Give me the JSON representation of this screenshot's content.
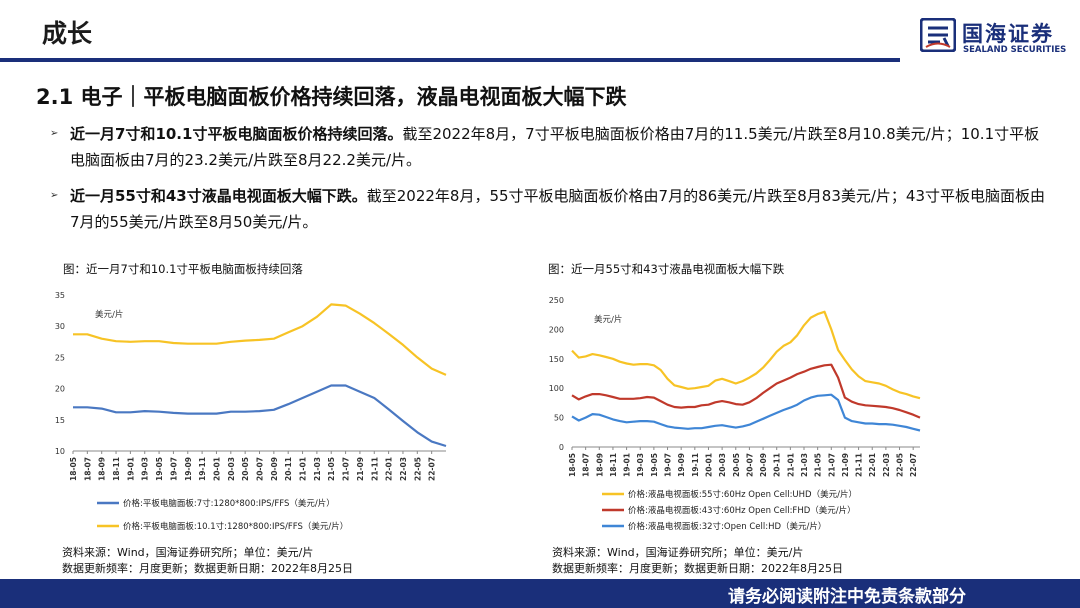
{
  "header": {
    "title": "成长",
    "logo_cn": "国海证券",
    "logo_en": "SEALAND SECURITIES",
    "brand_color": "#1a2f7a"
  },
  "section": {
    "heading": "2.1 电子｜平板电脑面板价格持续回落，液晶电视面板大幅下跌"
  },
  "bullets": [
    {
      "bold": "近一月7寸和10.1寸平板电脑面板价格持续回落。",
      "text": "截至2022年8月，7寸平板电脑面板价格由7月的11.5美元/片跌至8月10.8美元/片；10.1寸平板电脑面板由7月的23.2美元/片跌至8月22.2美元/片。"
    },
    {
      "bold": "近一月55寸和43寸液晶电视面板大幅下跌。",
      "text": "截至2022年8月，55寸平板电脑面板价格由7月的86美元/片跌至8月83美元/片；43寸平板电脑面板由7月的55美元/片跌至8月50美元/片。"
    }
  ],
  "left_panel": {
    "caption": "图：近一月7寸和10.1寸平板电脑面板持续回落",
    "source": "资料来源：Wind，国海证券研究所；单位：美元/片",
    "update": "数据更新频率：月度更新；数据更新日期：2022年8月25日"
  },
  "right_panel": {
    "caption": "图：近一月55寸和43寸液晶电视面板大幅下跌",
    "source": "资料来源：Wind，国海证券研究所；单位：美元/片",
    "update": "数据更新频率：月度更新；数据更新日期：2022年8月25日"
  },
  "footer": {
    "disclaimer": "请务必阅读附注中免责条款部分"
  },
  "chart_data": [
    {
      "type": "line",
      "unit_label": "美元/片",
      "ylim": [
        10,
        35
      ],
      "yticks": [
        10,
        15,
        20,
        25,
        30,
        35
      ],
      "grid": false,
      "legend_position": "bottom",
      "x_tick_labels": [
        "18-05",
        "18-07",
        "18-09",
        "18-11",
        "19-01",
        "19-03",
        "19-05",
        "19-07",
        "19-09",
        "19-11",
        "20-01",
        "20-03",
        "20-05",
        "20-07",
        "20-09",
        "20-11",
        "21-01",
        "21-03",
        "21-05",
        "21-07",
        "21-09",
        "21-11",
        "22-01",
        "22-03",
        "22-05",
        "22-07"
      ],
      "x": [
        "18-05",
        "18-07",
        "18-09",
        "18-11",
        "19-01",
        "19-03",
        "19-05",
        "19-07",
        "19-09",
        "19-11",
        "20-01",
        "20-03",
        "20-05",
        "20-07",
        "20-09",
        "20-11",
        "21-01",
        "21-03",
        "21-05",
        "21-07",
        "21-09",
        "21-11",
        "22-01",
        "22-03",
        "22-05",
        "22-07",
        "22-08"
      ],
      "series": [
        {
          "name": "价格:平板电脑面板:7寸:1280*800:IPS/FFS（美元/片）",
          "color": "#4a78c2",
          "values": [
            17.0,
            17.0,
            16.8,
            16.2,
            16.2,
            16.4,
            16.3,
            16.1,
            16.0,
            16.0,
            16.0,
            16.3,
            16.3,
            16.4,
            16.6,
            17.5,
            18.5,
            19.5,
            20.5,
            20.5,
            19.5,
            18.5,
            16.7,
            14.8,
            13.0,
            11.5,
            10.8
          ]
        },
        {
          "name": "价格:平板电脑面板:10.1寸:1280*800:IPS/FFS（美元/片）",
          "color": "#f7c325",
          "values": [
            28.7,
            28.7,
            28.0,
            27.6,
            27.5,
            27.6,
            27.6,
            27.3,
            27.2,
            27.2,
            27.2,
            27.5,
            27.7,
            27.8,
            28.0,
            29.0,
            30.0,
            31.5,
            33.5,
            33.3,
            32.0,
            30.5,
            28.8,
            27.0,
            25.0,
            23.2,
            22.2
          ]
        }
      ]
    },
    {
      "type": "line",
      "unit_label": "美元/片",
      "ylim": [
        0,
        250
      ],
      "yticks": [
        0,
        50,
        100,
        150,
        200,
        250
      ],
      "grid": false,
      "legend_position": "bottom",
      "x_tick_labels": [
        "18-05",
        "18-07",
        "18-09",
        "18-11",
        "19-01",
        "19-03",
        "19-05",
        "19-07",
        "19-09",
        "19-11",
        "20-01",
        "20-03",
        "20-05",
        "20-07",
        "20-09",
        "20-11",
        "21-01",
        "21-03",
        "21-05",
        "21-07",
        "21-09",
        "21-11",
        "22-01",
        "22-03",
        "22-05",
        "22-07"
      ],
      "x": [
        "18-05",
        "18-06",
        "18-07",
        "18-08",
        "18-09",
        "18-10",
        "18-11",
        "18-12",
        "19-01",
        "19-02",
        "19-03",
        "19-04",
        "19-05",
        "19-06",
        "19-07",
        "19-08",
        "19-09",
        "19-10",
        "19-11",
        "19-12",
        "20-01",
        "20-02",
        "20-03",
        "20-04",
        "20-05",
        "20-06",
        "20-07",
        "20-08",
        "20-09",
        "20-10",
        "20-11",
        "20-12",
        "21-01",
        "21-02",
        "21-03",
        "21-04",
        "21-05",
        "21-06",
        "21-07",
        "21-08",
        "21-09",
        "21-10",
        "21-11",
        "21-12",
        "22-01",
        "22-02",
        "22-03",
        "22-04",
        "22-05",
        "22-06",
        "22-07",
        "22-08"
      ],
      "series": [
        {
          "name": "价格:液晶电视面板:55寸:60Hz Open Cell:UHD（美元/片）",
          "color": "#f7c325",
          "values": [
            164,
            152,
            154,
            158,
            156,
            153,
            150,
            145,
            142,
            140,
            141,
            141,
            139,
            131,
            116,
            105,
            102,
            99,
            100,
            102,
            104,
            113,
            116,
            112,
            108,
            112,
            118,
            125,
            135,
            148,
            162,
            172,
            178,
            190,
            207,
            220,
            226,
            230,
            200,
            165,
            148,
            132,
            120,
            112,
            110,
            108,
            104,
            98,
            93,
            90,
            86,
            83
          ]
        },
        {
          "name": "价格:液晶电视面板:43寸:60Hz Open Cell:FHD（美元/片）",
          "color": "#c0392b",
          "values": [
            88,
            81,
            86,
            90,
            90,
            88,
            85,
            82,
            82,
            82,
            83,
            85,
            84,
            78,
            72,
            68,
            67,
            68,
            68,
            71,
            72,
            76,
            78,
            76,
            73,
            72,
            76,
            83,
            92,
            100,
            108,
            113,
            118,
            124,
            128,
            133,
            136,
            139,
            140,
            118,
            84,
            77,
            73,
            71,
            70,
            69,
            68,
            66,
            63,
            59,
            55,
            50
          ]
        },
        {
          "name": "价格:液晶电视面板:32寸:Open Cell:HD（美元/片）",
          "color": "#3f86d6",
          "values": [
            52,
            45,
            50,
            56,
            55,
            51,
            47,
            44,
            42,
            43,
            44,
            44,
            43,
            39,
            35,
            33,
            32,
            31,
            32,
            32,
            34,
            36,
            37,
            35,
            33,
            35,
            38,
            43,
            48,
            53,
            58,
            63,
            67,
            72,
            79,
            84,
            87,
            88,
            89,
            80,
            50,
            44,
            42,
            40,
            40,
            39,
            39,
            38,
            36,
            34,
            31,
            28
          ]
        }
      ]
    }
  ]
}
